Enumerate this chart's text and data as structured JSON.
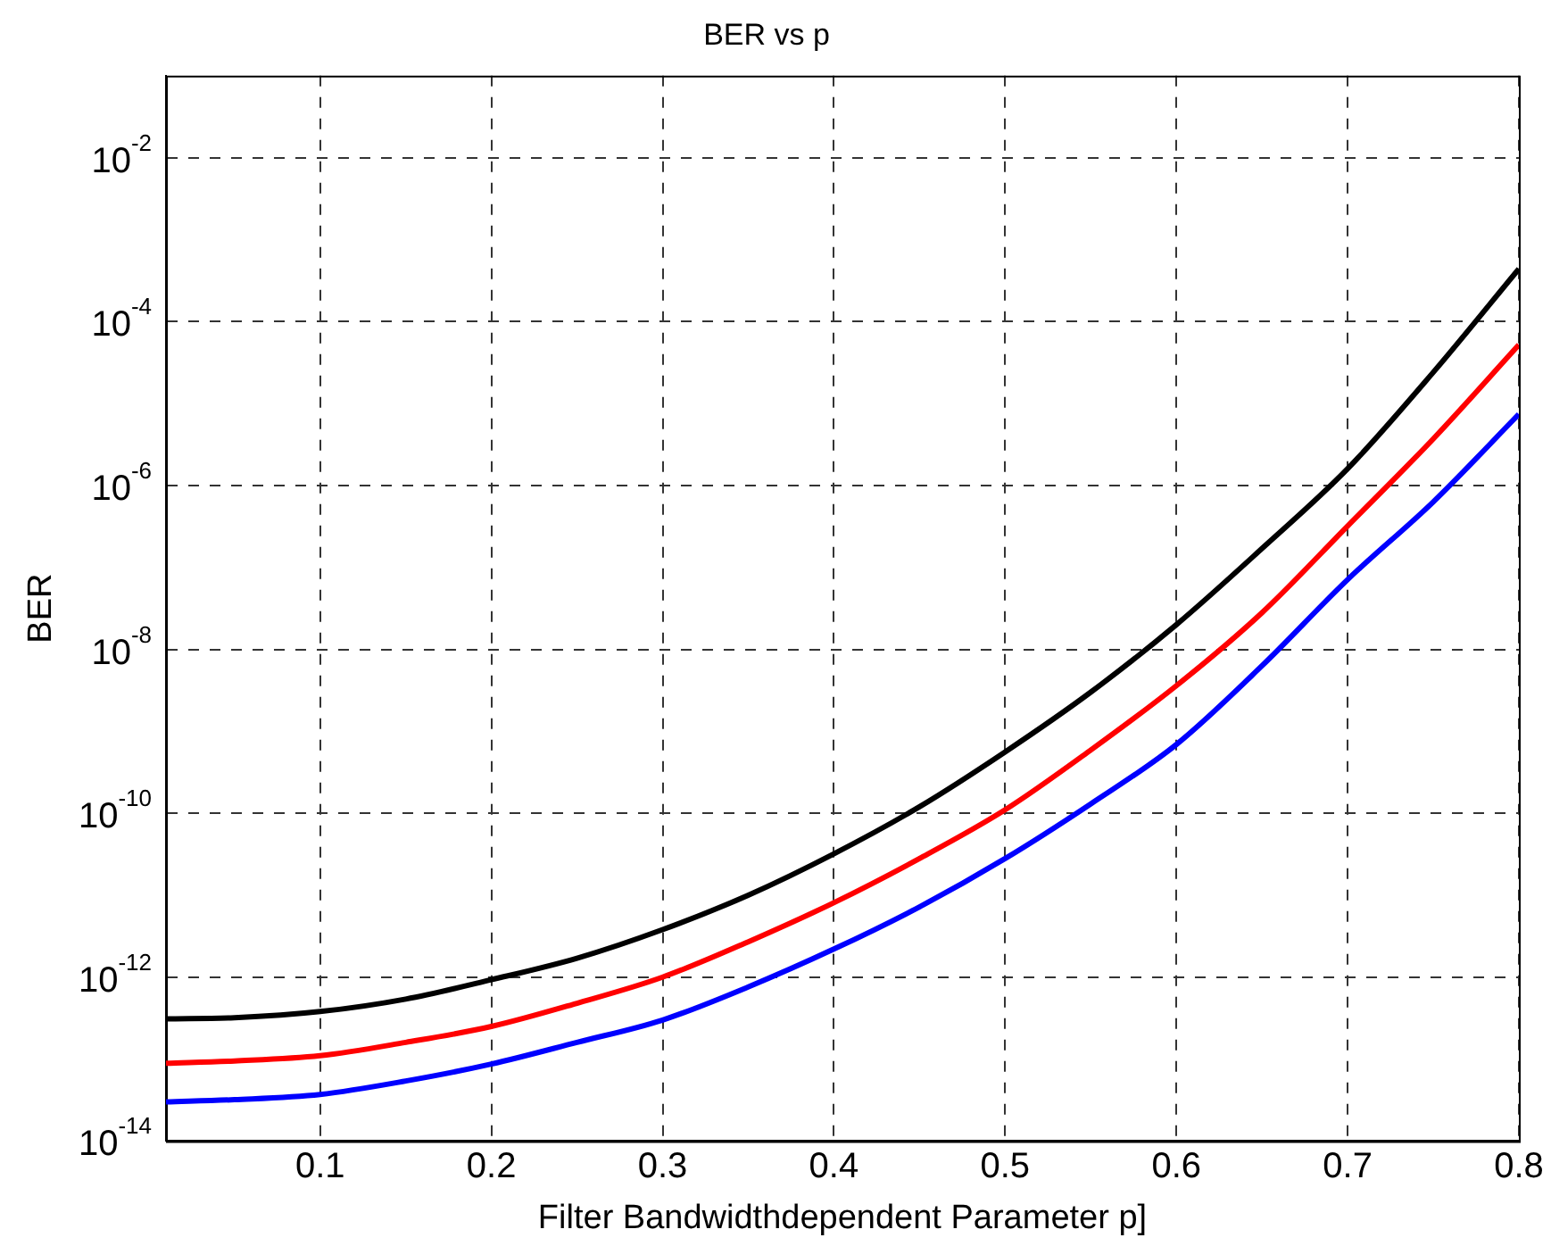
{
  "chart_data": {
    "type": "line",
    "title": "BER vs p",
    "xlabel": "Filter Bandwidthdependent Parameter p]",
    "ylabel": "BER",
    "x": [
      0.01,
      0.05,
      0.1,
      0.15,
      0.2,
      0.25,
      0.3,
      0.35,
      0.4,
      0.45,
      0.5,
      0.55,
      0.6,
      0.65,
      0.7,
      0.75,
      0.8
    ],
    "series": [
      {
        "color": "#000000",
        "values": [
          3.1e-13,
          3.2e-13,
          3.8e-13,
          5.4e-13,
          9.3e-13,
          1.7e-12,
          3.8e-12,
          1e-11,
          3.2e-11,
          1.2e-10,
          5.6e-10,
          3e-09,
          2e-08,
          1.7e-07,
          1.6e-06,
          2.4e-05,
          0.00044
        ]
      },
      {
        "color": "#ff0000",
        "values": [
          8.9e-14,
          9.5e-14,
          1.1e-13,
          1.6e-13,
          2.5e-13,
          4.8e-13,
          1e-12,
          2.7e-12,
          8.1e-12,
          2.8e-11,
          1.1e-10,
          5.9e-10,
          3.6e-09,
          2.8e-08,
          3.2e-07,
          3.7e-06,
          5.2e-05
        ]
      },
      {
        "color": "#0000ff",
        "values": [
          3e-14,
          3.2e-14,
          3.7e-14,
          5.4e-14,
          8.7e-14,
          1.6e-13,
          3e-13,
          7.6e-13,
          2.2e-12,
          7.2e-12,
          2.8e-11,
          1.3e-10,
          6.9e-10,
          6.3e-09,
          7.1e-08,
          6.3e-07,
          7.4e-06
        ]
      }
    ],
    "log": "y",
    "xlim": [
      0.01,
      0.8
    ],
    "ylim": [
      1e-14,
      0.1
    ],
    "xticks": [
      0.1,
      0.2,
      0.3,
      0.4,
      0.5,
      0.6,
      0.7,
      0.8
    ],
    "yticks": [
      {
        "value": 1e-14,
        "label": "10$^{-14}$"
      },
      {
        "value": 1e-12,
        "label": "10$^{-12}$"
      },
      {
        "value": 1e-10,
        "label": "10$^{-10}$"
      },
      {
        "value": 1e-08,
        "label": "10$^{-8}$"
      },
      {
        "value": 1e-06,
        "label": "10$^{-6}$"
      },
      {
        "value": 0.0001,
        "label": "10$^{-4}$"
      },
      {
        "value": 0.01,
        "label": "10$^{-2}$"
      }
    ],
    "grid": true,
    "line_style": "solid",
    "marker": "none",
    "legend": false
  }
}
